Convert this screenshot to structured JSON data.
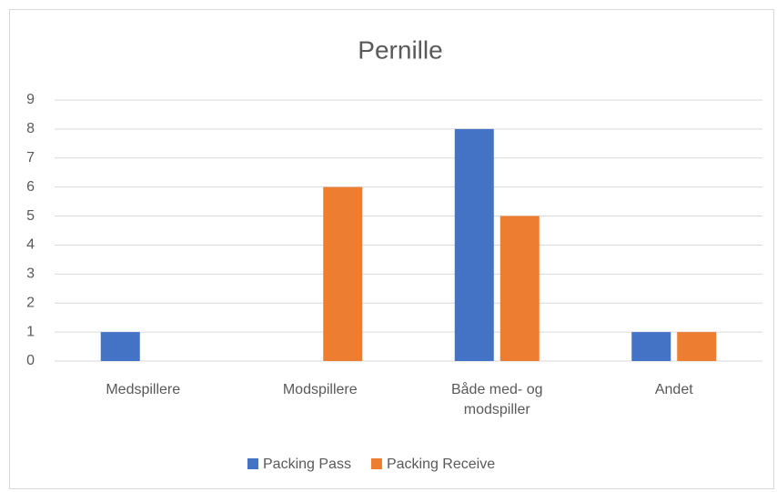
{
  "chart_data": {
    "type": "bar",
    "title": "Pernille",
    "categories": [
      "Medspillere",
      "Modspillere",
      "Både med- og modspiller",
      "Andet"
    ],
    "series": [
      {
        "name": "Packing Pass",
        "color": "#4472c4",
        "values": [
          1,
          0,
          8,
          1
        ]
      },
      {
        "name": "Packing Receive",
        "color": "#ed7d31",
        "values": [
          0,
          6,
          5,
          1
        ]
      }
    ],
    "ylim": [
      0,
      9
    ],
    "yticks": [
      0,
      1,
      2,
      3,
      4,
      5,
      6,
      7,
      8,
      9
    ],
    "grid": true,
    "legend": "bottom"
  }
}
